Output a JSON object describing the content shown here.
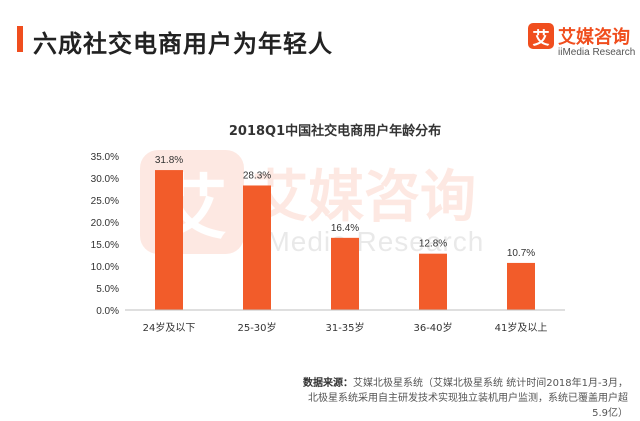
{
  "header": {
    "title": "六成社交电商用户为年轻人",
    "accent_color": "#F04E1E"
  },
  "logo": {
    "badge": "艾",
    "name_cn": "艾媒咨询",
    "name_en": "iiMedia Research"
  },
  "watermark": {
    "badge": "艾",
    "name_cn": "艾媒咨询",
    "name_en": "iiMedia Research"
  },
  "chart_data": {
    "type": "bar",
    "title": "2018Q1中国社交电商用户年龄分布",
    "categories": [
      "24岁及以下",
      "25-30岁",
      "31-35岁",
      "36-40岁",
      "41岁及以上"
    ],
    "values": [
      31.8,
      28.3,
      16.4,
      12.8,
      10.7
    ],
    "value_labels": [
      "31.8%",
      "28.3%",
      "16.4%",
      "12.8%",
      "10.7%"
    ],
    "ylim": [
      0,
      35
    ],
    "yticks": [
      "0.0%",
      "5.0%",
      "10.0%",
      "15.0%",
      "20.0%",
      "25.0%",
      "30.0%",
      "35.0%"
    ],
    "bar_color": "#F25C2A",
    "grid": false,
    "legend": "none"
  },
  "source": {
    "label": "数据来源：",
    "text": "艾媒北极星系统（艾媒北极星系统 统计时间2018年1月-3月，北极星系统采用自主研发技术实现独立装机用户监测，系统已覆盖用户超5.9亿）"
  }
}
